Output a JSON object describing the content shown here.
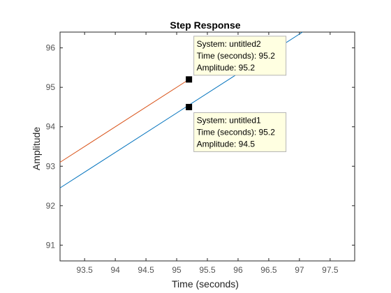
{
  "chart_data": {
    "type": "line",
    "title": "Step Response",
    "xlabel": "Time (seconds)",
    "ylabel": "Amplitude",
    "xlim": [
      93.1,
      97.9
    ],
    "ylim": [
      90.6,
      96.4
    ],
    "x_ticks": [
      "93.5",
      "94",
      "94.5",
      "95",
      "95.5",
      "96",
      "96.5",
      "97",
      "97.5"
    ],
    "y_ticks": [
      "91",
      "92",
      "93",
      "94",
      "95",
      "96"
    ],
    "grid": false,
    "series": [
      {
        "name": "untitled1",
        "color": "#0072BD",
        "x": [
          93.1,
          97.05
        ],
        "y": [
          92.45,
          96.4
        ]
      },
      {
        "name": "untitled2",
        "color": "#D95319",
        "x": [
          93.1,
          95.2
        ],
        "y": [
          93.1,
          95.2
        ]
      }
    ],
    "datatips": [
      {
        "series": "untitled2",
        "x": 95.2,
        "y": 95.2,
        "lines": [
          "System: untitled2",
          "Time (seconds): 95.2",
          "Amplitude: 95.2"
        ]
      },
      {
        "series": "untitled1",
        "x": 95.2,
        "y": 94.5,
        "lines": [
          "System: untitled1",
          "Time (seconds): 95.2",
          "Amplitude: 94.5"
        ]
      }
    ]
  }
}
